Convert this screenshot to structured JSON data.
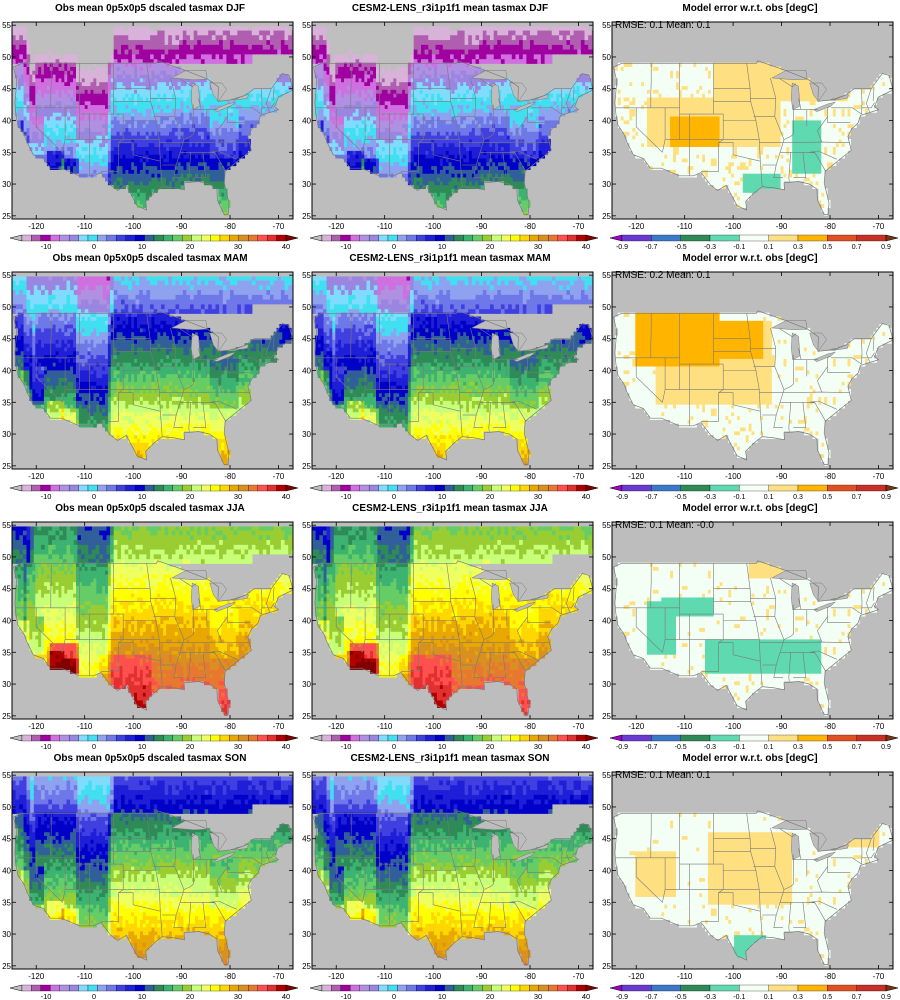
{
  "figure": {
    "columns": [
      "Obs",
      "Model",
      "Error"
    ],
    "seasons": [
      "DJF",
      "MAM",
      "JJA",
      "SON"
    ]
  },
  "panels": [
    {
      "title": "Obs mean 0p5x0p5 dscaled tasmax DJF",
      "stats": "",
      "kind": "obs",
      "season": "DJF"
    },
    {
      "title": "CESM2-LENS_r3i1p1f1 mean tasmax DJF",
      "stats": "",
      "kind": "model",
      "season": "DJF"
    },
    {
      "title": "Model error w.r.t. obs [degC]",
      "stats": "RMSE: 0.1   Mean: 0.1",
      "kind": "error",
      "season": "DJF"
    },
    {
      "title": "Obs mean 0p5x0p5 dscaled tasmax MAM",
      "stats": "",
      "kind": "obs",
      "season": "MAM"
    },
    {
      "title": "CESM2-LENS_r3i1p1f1 mean tasmax MAM",
      "stats": "",
      "kind": "model",
      "season": "MAM"
    },
    {
      "title": "Model error w.r.t. obs [degC]",
      "stats": "RMSE: 0.2   Mean: 0.1",
      "kind": "error",
      "season": "MAM"
    },
    {
      "title": "Obs mean 0p5x0p5 dscaled tasmax JJA",
      "stats": "",
      "kind": "obs",
      "season": "JJA"
    },
    {
      "title": "CESM2-LENS_r3i1p1f1 mean tasmax JJA",
      "stats": "",
      "kind": "model",
      "season": "JJA"
    },
    {
      "title": "Model error w.r.t. obs [degC]",
      "stats": "RMSE: 0.1   Mean: -0.0",
      "kind": "error",
      "season": "JJA"
    },
    {
      "title": "Obs mean 0p5x0p5 dscaled tasmax SON",
      "stats": "",
      "kind": "obs",
      "season": "SON"
    },
    {
      "title": "CESM2-LENS_r3i1p1f1 mean tasmax SON",
      "stats": "",
      "kind": "model",
      "season": "SON"
    },
    {
      "title": "Model error w.r.t. obs [degC]",
      "stats": "RMSE: 0.1   Mean: 0.1",
      "kind": "error",
      "season": "SON"
    }
  ],
  "map_axes": {
    "lon_ticks": [
      "-120",
      "-110",
      "-100",
      "-90",
      "-80",
      "-70"
    ],
    "lat_ticks": [
      "55",
      "50",
      "45",
      "40",
      "35",
      "30",
      "25"
    ],
    "lon_values": [
      -120,
      -110,
      -100,
      -90,
      -80,
      -70
    ],
    "lat_values": [
      55,
      50,
      45,
      40,
      35,
      30,
      25
    ],
    "lon_range": [
      -125,
      -67
    ],
    "lat_range": [
      24.5,
      55.5
    ]
  },
  "colorbars": {
    "temp": {
      "labels": [
        "-10",
        "0",
        "10",
        "20",
        "30",
        "40"
      ],
      "label_values": [
        -10,
        0,
        10,
        20,
        30,
        40
      ],
      "range": [
        -15,
        40
      ],
      "colors": [
        "#bfbfbf",
        "#d8b2d8",
        "#b05fb0",
        "#a000a0",
        "#d070e0",
        "#b090e0",
        "#9a86e0",
        "#7fdcff",
        "#40e0f0",
        "#8fa2f0",
        "#6f78e8",
        "#4040e0",
        "#1f1fd8",
        "#0000c8",
        "#305f9a",
        "#2e8b57",
        "#3cb371",
        "#66cd66",
        "#9acd32",
        "#c8ff78",
        "#f0ff60",
        "#ffff00",
        "#ffd700",
        "#e8a800",
        "#d89020",
        "#e87830",
        "#ff5050",
        "#e03030",
        "#b00000",
        "#800000"
      ]
    },
    "error": {
      "labels": [
        "-0.9",
        "-0.7",
        "-0.5",
        "-0.3",
        "-0.1",
        "0.1",
        "0.3",
        "0.5",
        "0.7",
        "0.9"
      ],
      "label_values": [
        -0.9,
        -0.7,
        -0.5,
        -0.3,
        -0.1,
        0.1,
        0.3,
        0.5,
        0.7,
        0.9
      ],
      "colors": [
        "#a000c8",
        "#6a3ad0",
        "#3c78c8",
        "#2e8b57",
        "#5fd9b0",
        "#f5fff5",
        "#ffe080",
        "#ffb400",
        "#e05020",
        "#c83028",
        "#7a3410"
      ]
    }
  },
  "colors": {
    "land_mask": "#bdbdbd",
    "boundaries": "#7a7a7a",
    "near_zero": "#f3fff5"
  }
}
